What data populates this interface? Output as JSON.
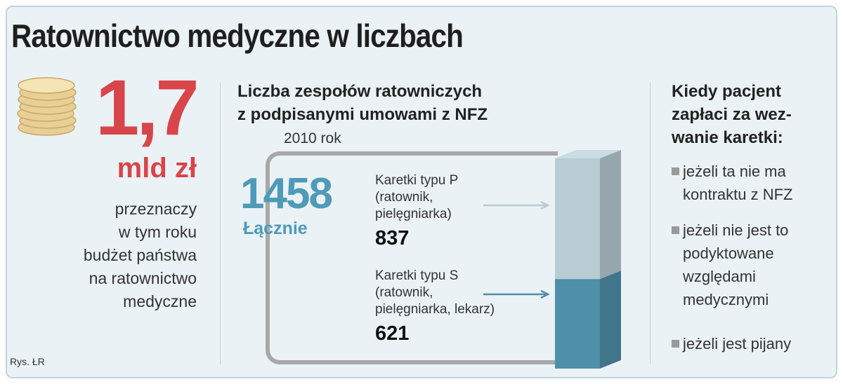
{
  "title": "Ratownictwo medyczne w liczbach",
  "budget": {
    "amount": "1,7",
    "unit": "mld zł",
    "description_lines": [
      "przeznaczy",
      "w tym roku",
      "budżet państwa",
      "na ratownictwo",
      "medyczne"
    ]
  },
  "source": "Rys. ŁR",
  "chart_data": {
    "type": "bar",
    "title_lines": [
      "Liczba zespołów ratowniczych",
      "z podpisanymi umowami z NFZ"
    ],
    "year_label": "2010 rok",
    "total": {
      "value": "1458",
      "label": "Łącznie"
    },
    "categories": [
      "2010 rok"
    ],
    "series": [
      {
        "label_lines": [
          "Karetki typu P",
          "(ratownik,",
          "pielęgniarka)"
        ],
        "value": 837,
        "color": "#b8ccd4"
      },
      {
        "label_lines": [
          "Karetki typu S",
          "(ratownik,",
          "pielęgniarka, lekarz)"
        ],
        "value": 621,
        "color": "#4e8fa9"
      }
    ]
  },
  "conditions": {
    "title_lines": [
      "Kiedy pacjent",
      "zapłaci za wez-",
      "wanie karetki:"
    ],
    "items": [
      {
        "lines": [
          "jeżeli ta nie ma",
          "kontraktu z NFZ"
        ]
      },
      {
        "lines": [
          "jeżeli nie jest to",
          "podyktowane",
          "względami",
          "medycznymi"
        ]
      },
      {
        "lines": [
          "jeżeli jest pijany"
        ]
      }
    ]
  },
  "colors": {
    "accent_red": "#d8454a",
    "accent_blue": "#4e9ab8",
    "bar_light": "#b8ccd4",
    "bar_dark": "#4e8fa9"
  }
}
